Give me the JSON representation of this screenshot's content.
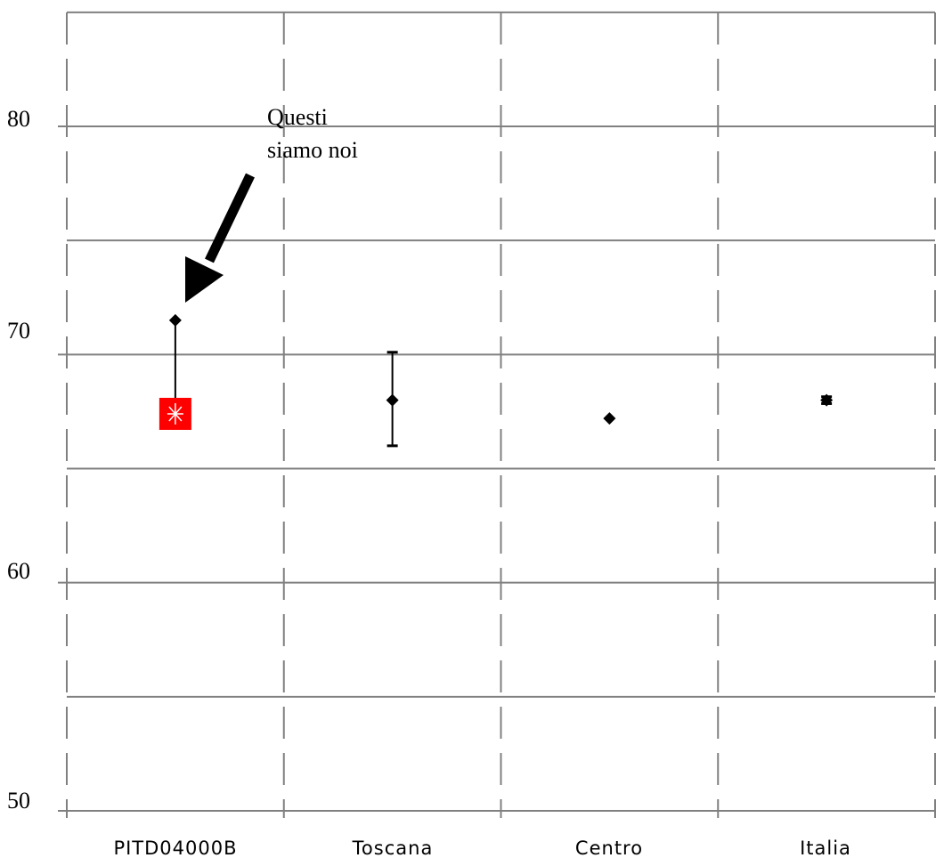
{
  "chart_data": {
    "type": "scatter",
    "categories": [
      "PITD04000B",
      "Toscana",
      "Centro",
      "Italia"
    ],
    "points": [
      {
        "category": "PITD04000B",
        "value": 71.5,
        "marker": "diamond"
      },
      {
        "category": "Toscana",
        "value": 68.0,
        "error": [
          66.0,
          70.1
        ],
        "marker": "diamond"
      },
      {
        "category": "Centro",
        "value": 67.2,
        "marker": "diamond"
      },
      {
        "category": "Italia",
        "value": 68.0,
        "error": [
          67.85,
          68.15
        ],
        "marker": "diamond"
      }
    ],
    "highlight": {
      "category": "PITD04000B",
      "value": 67.4,
      "whisker_to": 71.5,
      "color": "#ff0000"
    },
    "yticks": [
      "50",
      "60",
      "70",
      "80"
    ],
    "ylim": [
      50,
      85
    ],
    "grid": true,
    "annotation": {
      "line1": "Questi",
      "line2": "siamo noi",
      "target_category": "PITD04000B"
    },
    "colors": {
      "marker": "#000000",
      "grid": "#808080",
      "highlight": "#ff0000"
    }
  }
}
